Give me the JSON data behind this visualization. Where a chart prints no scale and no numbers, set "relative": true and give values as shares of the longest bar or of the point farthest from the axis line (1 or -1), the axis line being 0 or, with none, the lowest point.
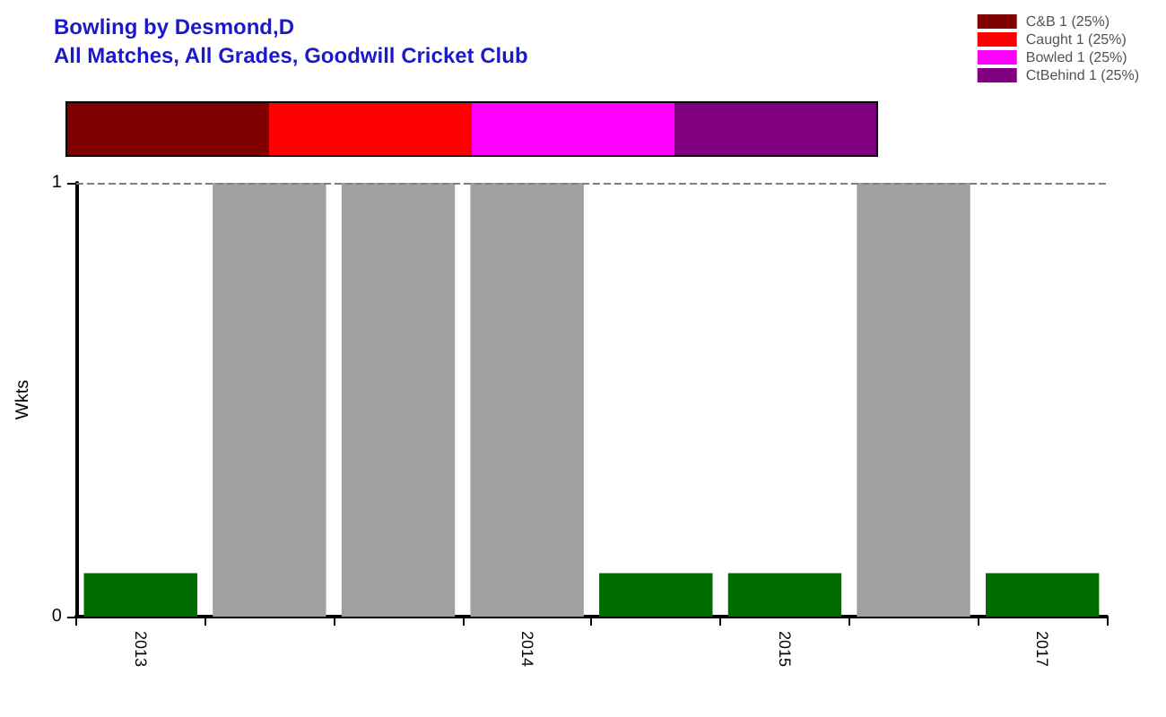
{
  "chart_data": [
    {
      "type": "bar",
      "title": "Bowling by Desmond,D",
      "subtitle": "All Matches, All Grades, Goodwill Cricket Club",
      "orientation": "horizontal",
      "stacked": true,
      "relative": true,
      "categories": [
        null
      ],
      "legend": "top right",
      "series": [
        {
          "name": "C&B 1 (25%)",
          "color": "#800000",
          "values": [
            0.25
          ]
        },
        {
          "name": "Caught 1 (25%)",
          "color": "#ff0000",
          "values": [
            0.25
          ]
        },
        {
          "name": "Bowled 1 (25%)",
          "color": "#ff00ff",
          "values": [
            0.25
          ]
        },
        {
          "name": "CtBehind 1 (25%)",
          "color": "#800080",
          "values": [
            0.25
          ]
        }
      ]
    },
    {
      "type": "bar",
      "ylabel": "Wkts",
      "categories": [
        "2013",
        null,
        null,
        "2014",
        null,
        "2015",
        null,
        "2017"
      ],
      "values": [
        0.1,
        1,
        1,
        1,
        0.1,
        0.1,
        1,
        0.1
      ],
      "colors": [
        "#006c00",
        "#a0a0a0",
        "#a0a0a0",
        "#a0a0a0",
        "#006c00",
        "#006c00",
        "#a0a0a0",
        "#006c00"
      ],
      "ylim": [
        0,
        1
      ],
      "yticks": [
        0,
        1
      ],
      "grid": false,
      "ref_lines": [
        {
          "axis": "y",
          "value": 1,
          "color": "#808080",
          "line_style": "dashed"
        }
      ]
    }
  ]
}
